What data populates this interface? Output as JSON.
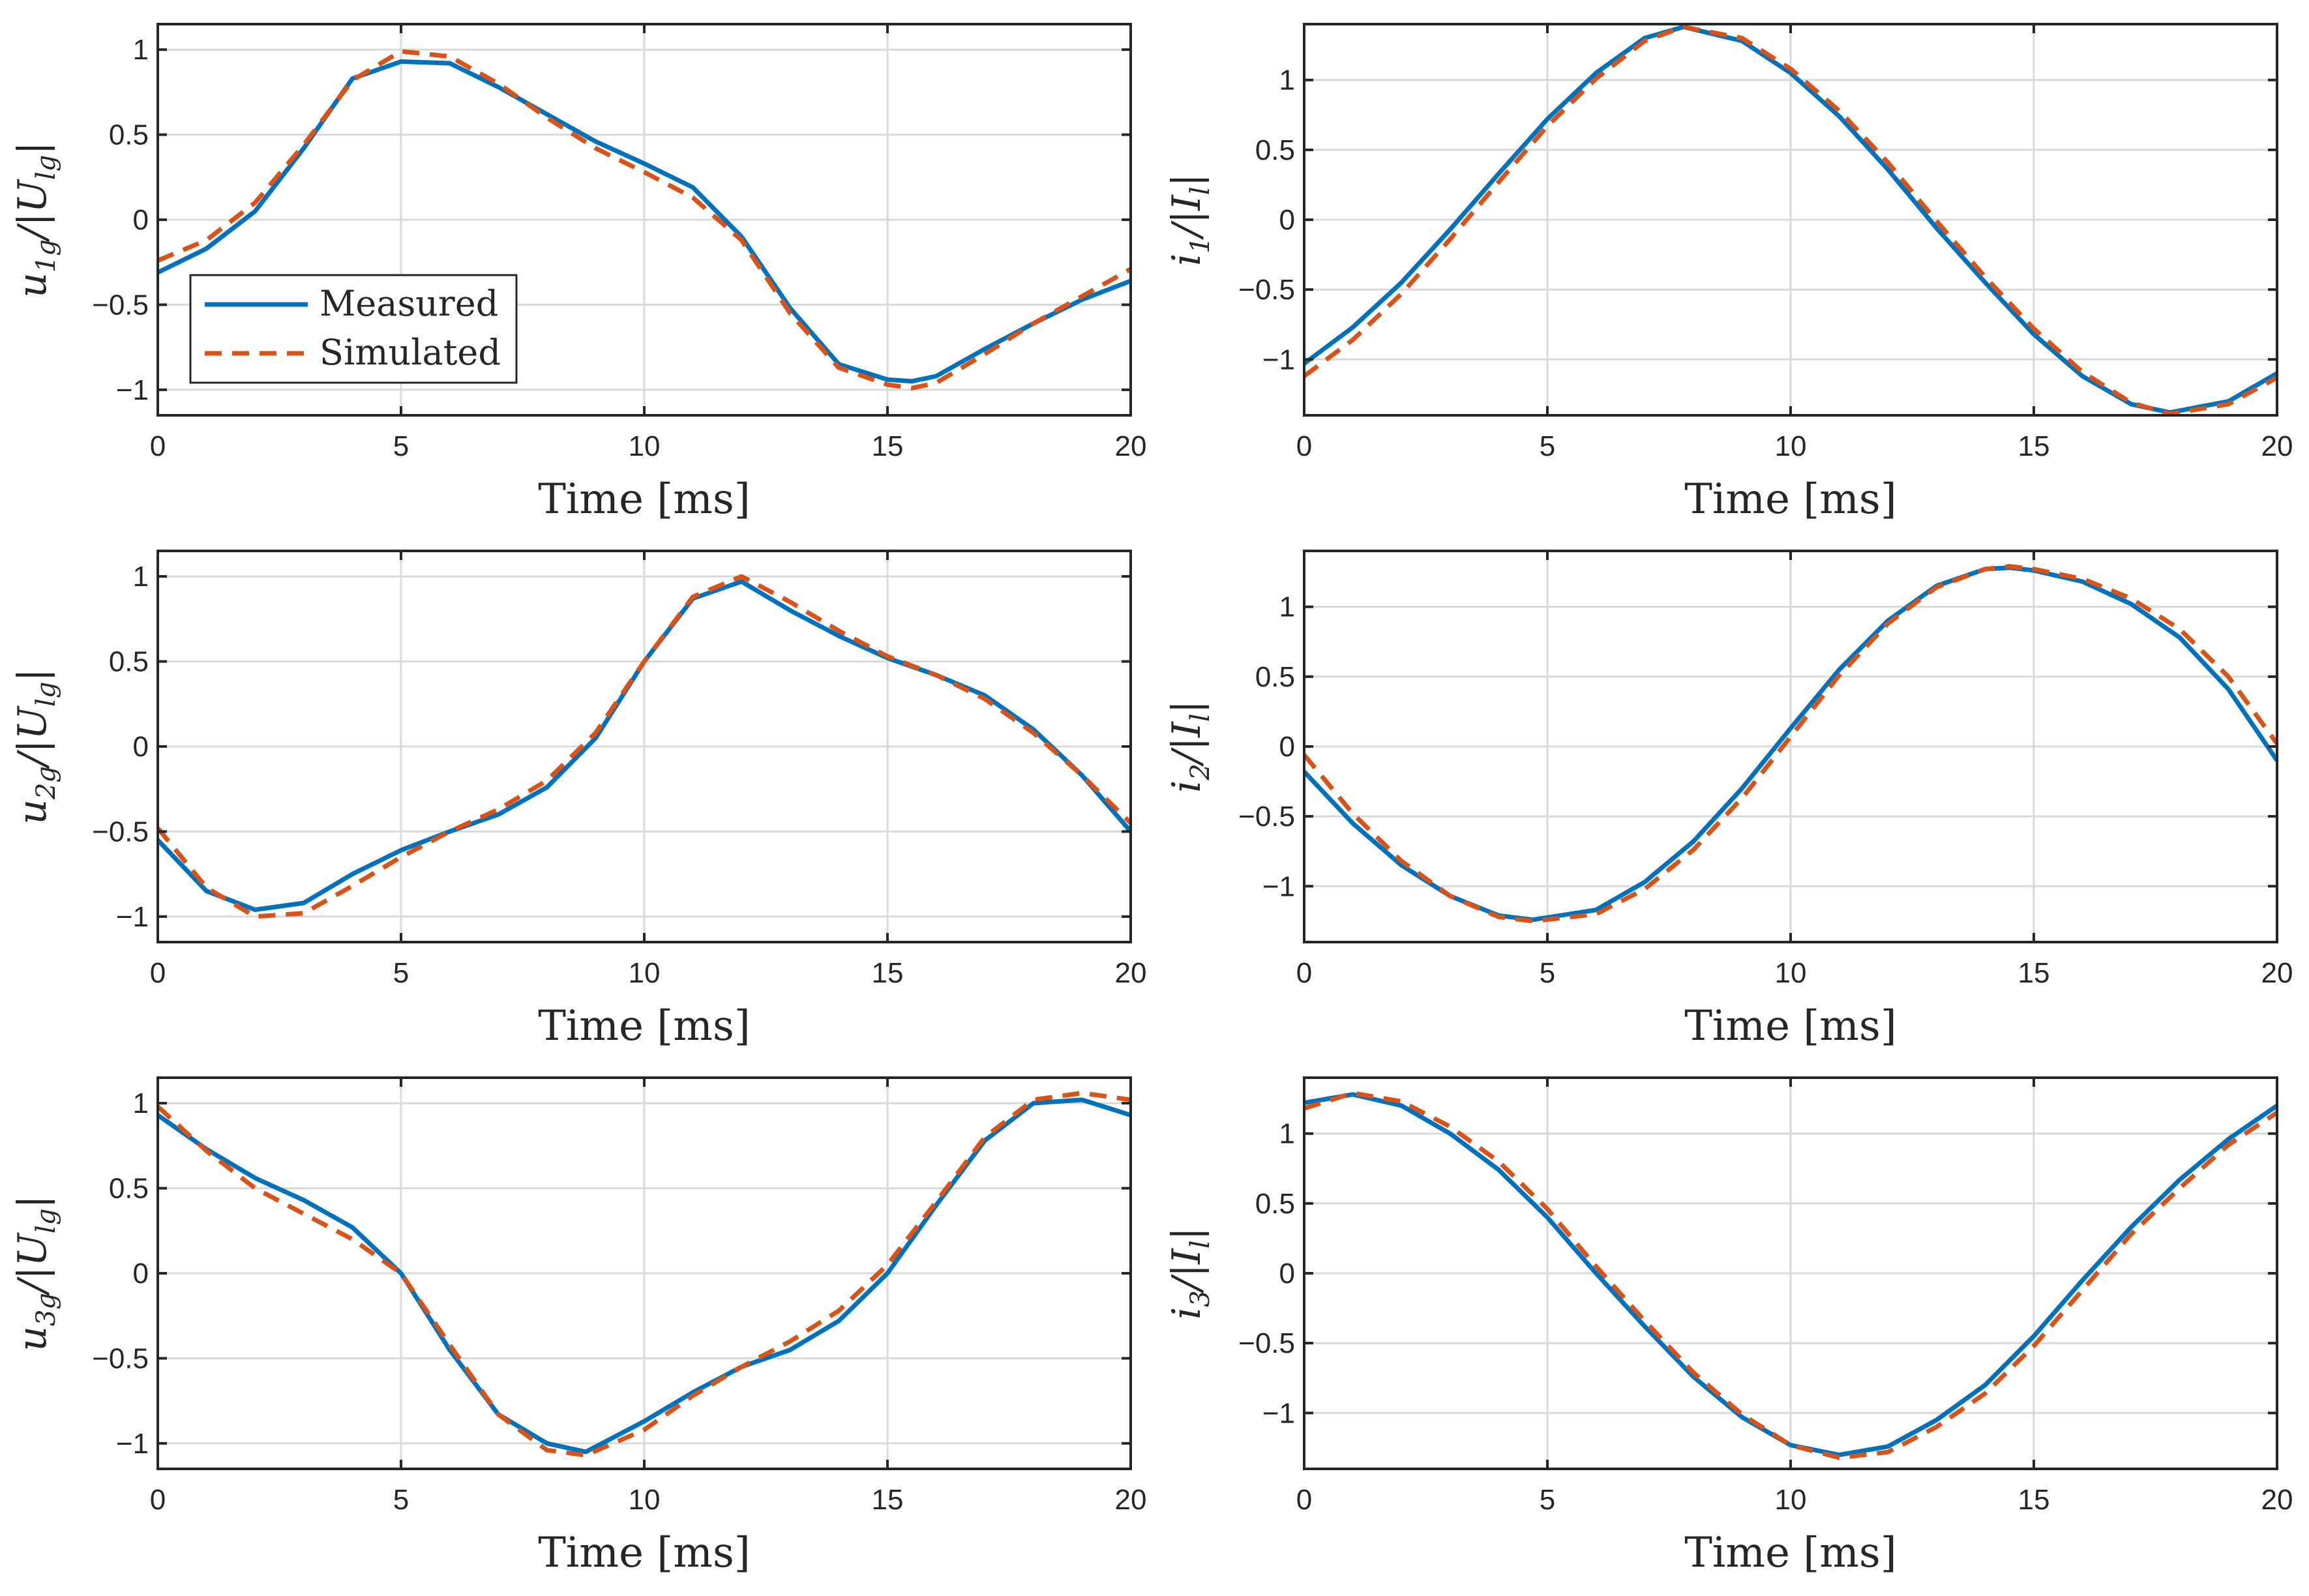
{
  "colors": {
    "measured": "#0072BD",
    "simulated": "#D95319",
    "grid": "#d9d9d9",
    "axis": "#262626"
  },
  "legend": {
    "measured_label": "Measured",
    "simulated_label": "Simulated",
    "location": "southwest"
  },
  "chart_data": [
    {
      "type": "line",
      "id": "u1",
      "ylabel": "u1g/|Ulg|",
      "ylabel_main": "u",
      "ylabel_sub": "1g",
      "ylabel_tail": "/|U",
      "ylabel_sub2": "lg",
      "ylabel_close": "|",
      "xlabel": "Time [ms]",
      "xlim": [
        0,
        20
      ],
      "ylim": [
        -1.15,
        1.15
      ],
      "xticks": [
        0,
        5,
        10,
        15,
        20
      ],
      "xtick_labels": [
        "0",
        "5",
        "10",
        "15",
        "20"
      ],
      "yticks": [
        1,
        0.5,
        0,
        -0.5,
        -1
      ],
      "ytick_labels": [
        "1",
        "0.5",
        "0",
        "−0.5",
        "−1"
      ],
      "grid": true,
      "has_legend": true,
      "series": [
        {
          "name": "Measured",
          "x": [
            0,
            1,
            2,
            3,
            4,
            5,
            6,
            7,
            8,
            9,
            10,
            11,
            12,
            13,
            14,
            15,
            15.5,
            16,
            17,
            18,
            19,
            20
          ],
          "y": [
            -0.31,
            -0.17,
            0.05,
            0.42,
            0.83,
            0.93,
            0.92,
            0.78,
            0.62,
            0.46,
            0.33,
            0.19,
            -0.1,
            -0.52,
            -0.85,
            -0.94,
            -0.95,
            -0.92,
            -0.76,
            -0.61,
            -0.47,
            -0.36
          ]
        },
        {
          "name": "Simulated",
          "x": [
            0,
            1,
            2,
            3,
            4,
            5,
            6,
            7,
            8,
            9,
            10,
            11,
            12,
            13,
            14,
            15,
            15.5,
            16,
            17,
            18,
            19,
            20
          ],
          "y": [
            -0.24,
            -0.12,
            0.1,
            0.44,
            0.82,
            0.99,
            0.96,
            0.8,
            0.6,
            0.42,
            0.28,
            0.13,
            -0.12,
            -0.55,
            -0.87,
            -0.97,
            -0.99,
            -0.96,
            -0.79,
            -0.61,
            -0.45,
            -0.29
          ]
        }
      ]
    },
    {
      "type": "line",
      "id": "i1",
      "ylabel": "i1/|Il|",
      "ylabel_main": "i",
      "ylabel_sub": "1",
      "ylabel_tail": "/|I",
      "ylabel_sub2": "l",
      "ylabel_close": "|",
      "xlabel": "Time [ms]",
      "xlim": [
        0,
        20
      ],
      "ylim": [
        -1.4,
        1.4
      ],
      "xticks": [
        0,
        5,
        10,
        15,
        20
      ],
      "xtick_labels": [
        "0",
        "5",
        "10",
        "15",
        "20"
      ],
      "yticks": [
        1,
        0.5,
        0,
        -0.5,
        -1
      ],
      "ytick_labels": [
        "1",
        "0.5",
        "0",
        "−0.5",
        "−1"
      ],
      "grid": true,
      "has_legend": false,
      "series": [
        {
          "name": "Measured",
          "x": [
            0,
            1,
            2,
            3,
            4,
            5,
            6,
            7,
            7.8,
            9,
            10,
            11,
            12,
            13,
            14,
            15,
            16,
            17,
            17.8,
            19,
            20
          ],
          "y": [
            -1.03,
            -0.77,
            -0.45,
            -0.07,
            0.33,
            0.72,
            1.05,
            1.3,
            1.38,
            1.28,
            1.05,
            0.74,
            0.36,
            -0.06,
            -0.45,
            -0.82,
            -1.12,
            -1.32,
            -1.38,
            -1.3,
            -1.1
          ]
        },
        {
          "name": "Simulated",
          "x": [
            0,
            1,
            2,
            3,
            4,
            5,
            6,
            7,
            7.8,
            9,
            10,
            11,
            12,
            13,
            14,
            15,
            16,
            17,
            17.8,
            19,
            20
          ],
          "y": [
            -1.12,
            -0.86,
            -0.53,
            -0.14,
            0.27,
            0.67,
            1.01,
            1.28,
            1.38,
            1.3,
            1.08,
            0.78,
            0.41,
            -0.01,
            -0.41,
            -0.78,
            -1.09,
            -1.31,
            -1.39,
            -1.32,
            -1.13
          ]
        }
      ]
    },
    {
      "type": "line",
      "id": "u2",
      "ylabel": "u2g/|Ulg|",
      "ylabel_main": "u",
      "ylabel_sub": "2g",
      "ylabel_tail": "/|U",
      "ylabel_sub2": "lg",
      "ylabel_close": "|",
      "xlabel": "Time [ms]",
      "xlim": [
        0,
        20
      ],
      "ylim": [
        -1.15,
        1.15
      ],
      "xticks": [
        0,
        5,
        10,
        15,
        20
      ],
      "xtick_labels": [
        "0",
        "5",
        "10",
        "15",
        "20"
      ],
      "yticks": [
        1,
        0.5,
        0,
        -0.5,
        -1
      ],
      "ytick_labels": [
        "1",
        "0.5",
        "0",
        "−0.5",
        "−1"
      ],
      "grid": true,
      "has_legend": false,
      "series": [
        {
          "name": "Measured",
          "x": [
            0,
            1,
            2,
            3,
            4,
            5,
            6,
            7,
            8,
            9,
            10,
            11,
            12,
            13,
            14,
            15,
            16,
            17,
            18,
            19,
            20
          ],
          "y": [
            -0.55,
            -0.85,
            -0.96,
            -0.92,
            -0.75,
            -0.61,
            -0.5,
            -0.4,
            -0.24,
            0.05,
            0.5,
            0.87,
            0.97,
            0.8,
            0.65,
            0.52,
            0.42,
            0.3,
            0.1,
            -0.17,
            -0.5
          ]
        },
        {
          "name": "Simulated",
          "x": [
            0,
            1,
            2,
            3,
            4,
            5,
            6,
            7,
            8,
            9,
            10,
            11,
            12,
            13,
            14,
            15,
            16,
            17,
            18,
            19,
            20
          ],
          "y": [
            -0.48,
            -0.83,
            -1.0,
            -0.98,
            -0.82,
            -0.65,
            -0.5,
            -0.37,
            -0.2,
            0.08,
            0.5,
            0.88,
            1.0,
            0.85,
            0.68,
            0.53,
            0.42,
            0.28,
            0.08,
            -0.17,
            -0.45
          ]
        }
      ]
    },
    {
      "type": "line",
      "id": "i2",
      "ylabel": "i2/|Il|",
      "ylabel_main": "i",
      "ylabel_sub": "2",
      "ylabel_tail": "/|I",
      "ylabel_sub2": "l",
      "ylabel_close": "|",
      "xlabel": "Time [ms]",
      "xlim": [
        0,
        20
      ],
      "ylim": [
        -1.4,
        1.4
      ],
      "xticks": [
        0,
        5,
        10,
        15,
        20
      ],
      "xtick_labels": [
        "0",
        "5",
        "10",
        "15",
        "20"
      ],
      "yticks": [
        1,
        0.5,
        0,
        -0.5,
        -1
      ],
      "ytick_labels": [
        "1",
        "0.5",
        "0",
        "−0.5",
        "−1"
      ],
      "grid": true,
      "has_legend": false,
      "series": [
        {
          "name": "Measured",
          "x": [
            0,
            1,
            2,
            3,
            4,
            4.7,
            6,
            7,
            8,
            9,
            10,
            11,
            12,
            13,
            14,
            14.5,
            15,
            16,
            17,
            18,
            19,
            20
          ],
          "y": [
            -0.18,
            -0.55,
            -0.85,
            -1.07,
            -1.21,
            -1.24,
            -1.17,
            -0.97,
            -0.68,
            -0.3,
            0.13,
            0.55,
            0.9,
            1.15,
            1.27,
            1.28,
            1.26,
            1.18,
            1.02,
            0.78,
            0.41,
            -0.1
          ]
        },
        {
          "name": "Simulated",
          "x": [
            0,
            1,
            2,
            3,
            4,
            4.7,
            6,
            7,
            8,
            9,
            10,
            11,
            12,
            13,
            14,
            14.5,
            15,
            16,
            17,
            18,
            19,
            20
          ],
          "y": [
            -0.06,
            -0.48,
            -0.82,
            -1.07,
            -1.22,
            -1.25,
            -1.2,
            -1.02,
            -0.74,
            -0.37,
            0.07,
            0.51,
            0.88,
            1.14,
            1.27,
            1.29,
            1.27,
            1.2,
            1.06,
            0.84,
            0.5,
            0.02
          ]
        }
      ]
    },
    {
      "type": "line",
      "id": "u3",
      "ylabel": "u3g/|Ulg|",
      "ylabel_main": "u",
      "ylabel_sub": "3g",
      "ylabel_tail": "/|U",
      "ylabel_sub2": "lg",
      "ylabel_close": "|",
      "xlabel": "Time [ms]",
      "xlim": [
        0,
        20
      ],
      "ylim": [
        -1.15,
        1.15
      ],
      "xticks": [
        0,
        5,
        10,
        15,
        20
      ],
      "xtick_labels": [
        "0",
        "5",
        "10",
        "15",
        "20"
      ],
      "yticks": [
        1,
        0.5,
        0,
        -0.5,
        -1
      ],
      "ytick_labels": [
        "1",
        "0.5",
        "0",
        "−0.5",
        "−1"
      ],
      "grid": true,
      "has_legend": false,
      "series": [
        {
          "name": "Measured",
          "x": [
            0,
            1,
            2,
            3,
            4,
            5,
            6,
            7,
            8,
            8.8,
            10,
            11,
            12,
            13,
            14,
            15,
            16,
            17,
            18,
            19,
            20
          ],
          "y": [
            0.93,
            0.73,
            0.56,
            0.43,
            0.27,
            0.0,
            -0.45,
            -0.83,
            -1.0,
            -1.05,
            -0.87,
            -0.7,
            -0.55,
            -0.45,
            -0.28,
            0.0,
            0.4,
            0.78,
            1.0,
            1.02,
            0.93
          ]
        },
        {
          "name": "Simulated",
          "x": [
            0,
            1,
            2,
            3,
            4,
            5,
            6,
            7,
            8,
            8.8,
            10,
            11,
            12,
            13,
            14,
            15,
            16,
            17,
            18,
            19,
            20
          ],
          "y": [
            0.98,
            0.72,
            0.5,
            0.35,
            0.2,
            0.0,
            -0.42,
            -0.83,
            -1.04,
            -1.07,
            -0.92,
            -0.72,
            -0.55,
            -0.4,
            -0.22,
            0.05,
            0.42,
            0.8,
            1.02,
            1.06,
            1.02
          ]
        }
      ]
    },
    {
      "type": "line",
      "id": "i3",
      "ylabel": "i3/|Il|",
      "ylabel_main": "i",
      "ylabel_sub": "3",
      "ylabel_tail": "/|I",
      "ylabel_sub2": "l",
      "ylabel_close": "|",
      "xlabel": "Time [ms]",
      "xlim": [
        0,
        20
      ],
      "ylim": [
        -1.4,
        1.4
      ],
      "xticks": [
        0,
        5,
        10,
        15,
        20
      ],
      "xtick_labels": [
        "0",
        "5",
        "10",
        "15",
        "20"
      ],
      "yticks": [
        1,
        0.5,
        0,
        -0.5,
        -1
      ],
      "ytick_labels": [
        "1",
        "0.5",
        "0",
        "−0.5",
        "−1"
      ],
      "grid": true,
      "has_legend": false,
      "series": [
        {
          "name": "Measured",
          "x": [
            0,
            1,
            2,
            3,
            4,
            5,
            6,
            7,
            8,
            9,
            10,
            11,
            12,
            13,
            14,
            15,
            16,
            17,
            18,
            19,
            20
          ],
          "y": [
            1.22,
            1.28,
            1.2,
            1.0,
            0.74,
            0.4,
            0.0,
            -0.38,
            -0.74,
            -1.03,
            -1.23,
            -1.3,
            -1.24,
            -1.05,
            -0.8,
            -0.45,
            -0.05,
            0.33,
            0.67,
            0.96,
            1.2
          ]
        },
        {
          "name": "Simulated",
          "x": [
            0,
            1,
            2,
            3,
            4,
            5,
            6,
            7,
            8,
            9,
            10,
            11,
            12,
            13,
            14,
            15,
            16,
            17,
            18,
            19,
            20
          ],
          "y": [
            1.18,
            1.29,
            1.23,
            1.05,
            0.8,
            0.46,
            0.05,
            -0.34,
            -0.71,
            -1.01,
            -1.23,
            -1.32,
            -1.28,
            -1.1,
            -0.86,
            -0.52,
            -0.12,
            0.28,
            0.61,
            0.92,
            1.15
          ]
        }
      ]
    }
  ]
}
